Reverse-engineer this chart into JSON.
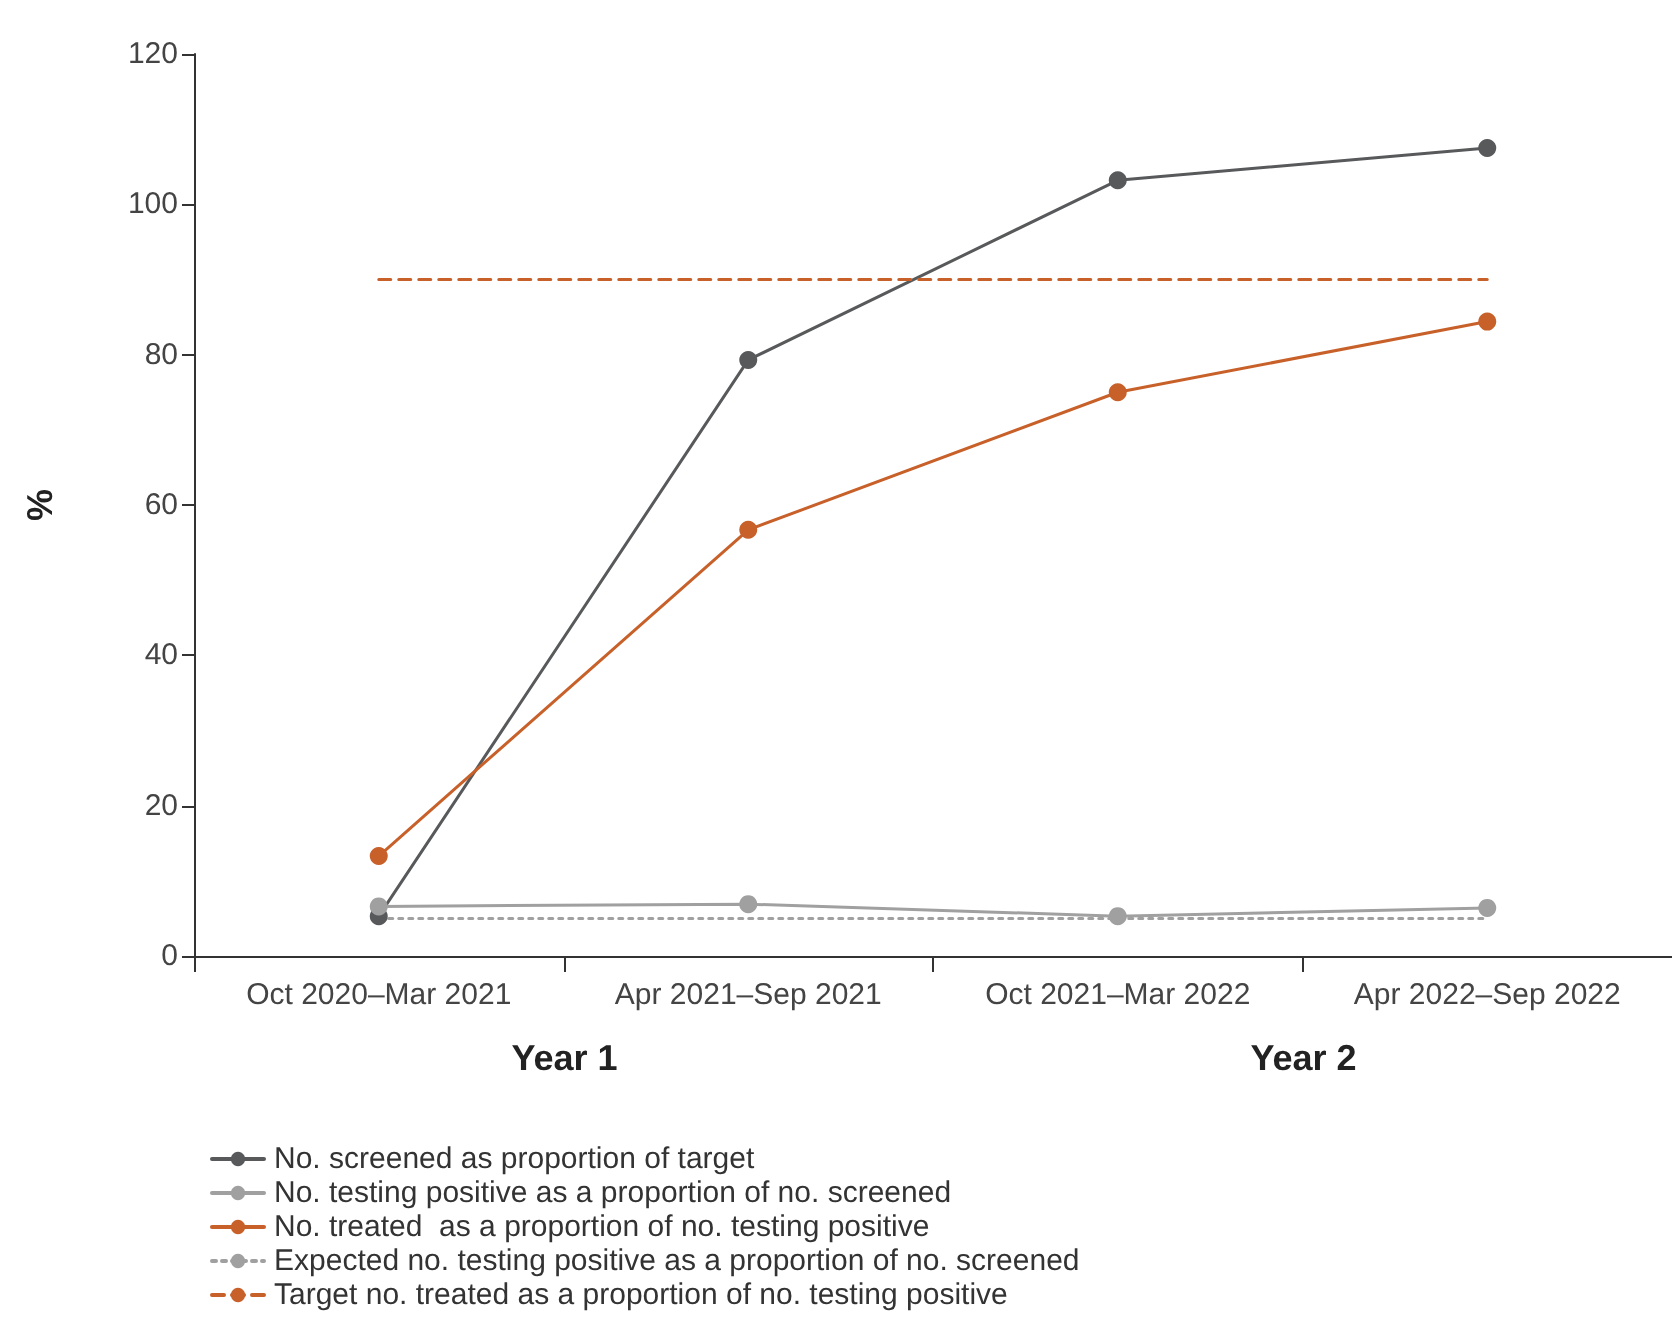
{
  "chart_data": {
    "type": "line",
    "ylabel": "%",
    "categories": [
      "Oct 2020–Mar 2021",
      "Apr 2021–Sep 2021",
      "Oct 2021–Mar 2022",
      "Apr 2022–Sep 2022"
    ],
    "series": [
      {
        "name": "No. screened as proportion of target",
        "color": "#58595b",
        "values": [
          5.3,
          79.3,
          103.2,
          107.5
        ],
        "marker": "circle",
        "line_style": "solid"
      },
      {
        "name": "No. testing positive as a proportion of no. screened",
        "color": "#a0a0a0",
        "values": [
          6.6,
          6.9,
          5.3,
          6.4
        ],
        "marker": "circle",
        "line_style": "solid"
      },
      {
        "name": "No. treated  as a proportion of no. testing positive",
        "color": "#c8602a",
        "values": [
          13.3,
          56.7,
          75,
          84.4
        ],
        "marker": "circle",
        "line_style": "solid"
      },
      {
        "name": "Expected no. testing positive as a proportion of no. screened",
        "color": "#a0a0a0",
        "values": [
          5,
          5,
          5,
          5
        ],
        "marker": "none",
        "line_style": "dotted"
      },
      {
        "name": "Target no. treated as a proportion of no. testing positive",
        "color": "#c8602a",
        "values": [
          90,
          90,
          90,
          90
        ],
        "marker": "none",
        "line_style": "dashed"
      }
    ],
    "annotations": [
      "Year 1",
      "Year 2"
    ],
    "ylim": [
      0,
      120
    ],
    "yticks": [
      0,
      20,
      40,
      60,
      80,
      100,
      120
    ],
    "grid": false,
    "legend": "bottom left"
  }
}
